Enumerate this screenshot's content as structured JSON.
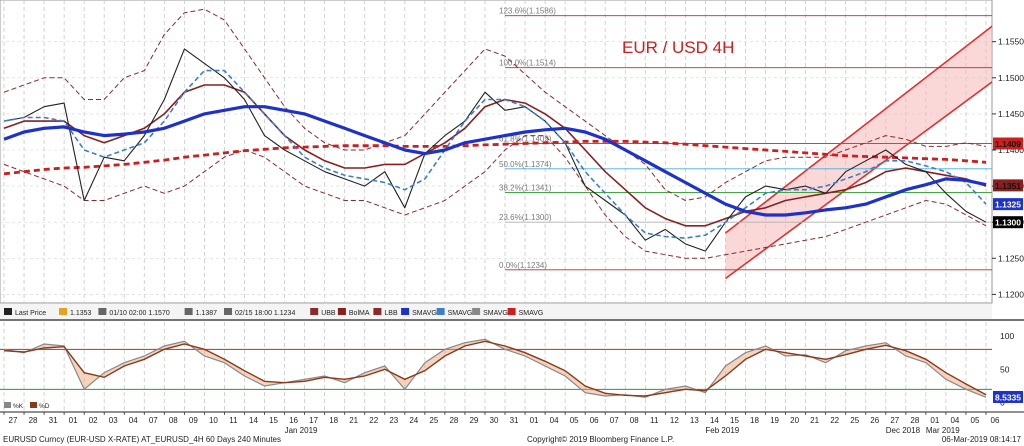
{
  "chart_data": [
    {
      "type": "line",
      "title": "EUR / USD 4H",
      "x": [
        "27",
        "28",
        "31",
        "01",
        "02",
        "03",
        "04",
        "07",
        "08",
        "09",
        "10",
        "11",
        "14",
        "15",
        "16",
        "17",
        "18",
        "21",
        "22",
        "23",
        "24",
        "25",
        "28",
        "29",
        "30",
        "31",
        "01",
        "04",
        "05",
        "06",
        "07",
        "08",
        "11",
        "12",
        "13",
        "14",
        "15",
        "18",
        "19",
        "20",
        "21",
        "22",
        "25",
        "26",
        "27",
        "28",
        "01",
        "04",
        "05",
        "06"
      ],
      "month_labels": [
        {
          "label": "Dec 2018",
          "at": "27"
        },
        {
          "label": "Jan 2019",
          "at": "16"
        },
        {
          "label": "Feb 2019",
          "at": "14"
        },
        {
          "label": "Mar 2019",
          "at": "01"
        }
      ],
      "ylim": [
        1.1195,
        1.1605
      ],
      "y_ticks": [
        "1.1550",
        "1.1500",
        "1.1450",
        "1.1400",
        "1.1350",
        "1.1300",
        "1.1250",
        "1.1200"
      ],
      "series": [
        {
          "name": "Last Price",
          "color": "#222222",
          "values": [
            1.144,
            1.1445,
            1.146,
            1.1465,
            1.133,
            1.139,
            1.1385,
            1.142,
            1.147,
            1.154,
            1.152,
            1.15,
            1.147,
            1.142,
            1.14,
            1.1385,
            1.137,
            1.136,
            1.135,
            1.137,
            1.132,
            1.1395,
            1.142,
            1.144,
            1.148,
            1.1455,
            1.146,
            1.144,
            1.141,
            1.135,
            1.133,
            1.131,
            1.1275,
            1.129,
            1.127,
            1.126,
            1.13,
            1.1335,
            1.135,
            1.1345,
            1.135,
            1.134,
            1.137,
            1.1385,
            1.14,
            1.138,
            1.137,
            1.134,
            1.1315,
            1.13
          ]
        },
        {
          "name": "UBB",
          "color": "#8a2a2a",
          "values": [
            1.148,
            1.149,
            1.15,
            1.15,
            1.147,
            1.147,
            1.15,
            1.151,
            1.156,
            1.159,
            1.1595,
            1.158,
            1.154,
            1.15,
            1.146,
            1.143,
            1.141,
            1.14,
            1.14,
            1.141,
            1.142,
            1.145,
            1.148,
            1.151,
            1.154,
            1.153,
            1.1505,
            1.148,
            1.146,
            1.144,
            1.142,
            1.14,
            1.138,
            1.1345,
            1.133,
            1.1335,
            1.1355,
            1.137,
            1.1385,
            1.139,
            1.139,
            1.139,
            1.14,
            1.141,
            1.142,
            1.1415,
            1.1405,
            1.1405,
            1.141,
            1.1405
          ]
        },
        {
          "name": "BolMA",
          "color": "#8a1f1f",
          "values": [
            1.143,
            1.144,
            1.144,
            1.144,
            1.142,
            1.141,
            1.142,
            1.143,
            1.145,
            1.148,
            1.149,
            1.149,
            1.148,
            1.145,
            1.142,
            1.14,
            1.1385,
            1.1375,
            1.1375,
            1.138,
            1.138,
            1.1395,
            1.141,
            1.143,
            1.146,
            1.147,
            1.1465,
            1.145,
            1.143,
            1.14,
            1.137,
            1.1345,
            1.132,
            1.1305,
            1.1295,
            1.1295,
            1.1305,
            1.1315,
            1.132,
            1.133,
            1.1335,
            1.134,
            1.1345,
            1.1355,
            1.137,
            1.1375,
            1.137,
            1.1365,
            1.136,
            1.135
          ]
        },
        {
          "name": "LBB",
          "color": "#8a2a2a",
          "values": [
            1.138,
            1.137,
            1.136,
            1.135,
            1.133,
            1.133,
            1.134,
            1.135,
            1.134,
            1.135,
            1.137,
            1.139,
            1.14,
            1.139,
            1.137,
            1.135,
            1.134,
            1.133,
            1.133,
            1.132,
            1.131,
            1.132,
            1.133,
            1.135,
            1.137,
            1.14,
            1.142,
            1.142,
            1.139,
            1.135,
            1.131,
            1.128,
            1.126,
            1.1255,
            1.125,
            1.125,
            1.1255,
            1.126,
            1.1265,
            1.127,
            1.1275,
            1.128,
            1.129,
            1.13,
            1.131,
            1.132,
            1.133,
            1.1325,
            1.131,
            1.1295
          ]
        },
        {
          "name": "SMAVG",
          "color": "#1e32c8",
          "values": [
            1.1415,
            1.1425,
            1.143,
            1.1432,
            1.1425,
            1.142,
            1.1422,
            1.1425,
            1.143,
            1.144,
            1.145,
            1.1455,
            1.146,
            1.146,
            1.1455,
            1.145,
            1.144,
            1.143,
            1.142,
            1.141,
            1.14,
            1.1395,
            1.14,
            1.141,
            1.1415,
            1.142,
            1.1425,
            1.1428,
            1.143,
            1.1425,
            1.1415,
            1.14,
            1.1385,
            1.137,
            1.1355,
            1.134,
            1.1325,
            1.1315,
            1.131,
            1.131,
            1.1313,
            1.1317,
            1.132,
            1.1325,
            1.1335,
            1.1345,
            1.1352,
            1.136,
            1.1358,
            1.1352
          ]
        },
        {
          "name": "SMAVG",
          "color": "#3a7fc8",
          "values": [
            1.144,
            1.1445,
            1.1445,
            1.144,
            1.14,
            1.139,
            1.14,
            1.141,
            1.144,
            1.148,
            1.151,
            1.151,
            1.148,
            1.145,
            1.142,
            1.139,
            1.1375,
            1.1365,
            1.136,
            1.1355,
            1.1345,
            1.136,
            1.14,
            1.144,
            1.147,
            1.147,
            1.146,
            1.144,
            1.141,
            1.137,
            1.134,
            1.131,
            1.1285,
            1.128,
            1.1278,
            1.1282,
            1.13,
            1.132,
            1.134,
            1.1345,
            1.1345,
            1.135,
            1.136,
            1.137,
            1.1385,
            1.1385,
            1.1378,
            1.137,
            1.1355,
            1.1325
          ]
        },
        {
          "name": "SMAVG",
          "color": "#cc1f1f",
          "values": [
            1.1367,
            1.137,
            1.1373,
            1.1375,
            1.1376,
            1.1378,
            1.138,
            1.1383,
            1.1386,
            1.139,
            1.1393,
            1.1396,
            1.1399,
            1.1401,
            1.1403,
            1.1404,
            1.1405,
            1.1406,
            1.1406,
            1.1406,
            1.1405,
            1.1405,
            1.1405,
            1.1406,
            1.1407,
            1.1408,
            1.1409,
            1.141,
            1.1411,
            1.1412,
            1.1412,
            1.1412,
            1.1411,
            1.141,
            1.1408,
            1.1406,
            1.1404,
            1.1402,
            1.14,
            1.1398,
            1.1396,
            1.1394,
            1.1392,
            1.1391,
            1.139,
            1.1389,
            1.1388,
            1.1387,
            1.1385,
            1.1383
          ]
        }
      ],
      "fib_levels": [
        {
          "label": "123.6%(1.1586)",
          "value": 1.1586
        },
        {
          "label": "100.0%(1.1514)",
          "value": 1.1514
        },
        {
          "label": "61.8%(1.1409)",
          "value": 1.1409
        },
        {
          "label": "50.0%(1.1374)",
          "value": 1.1374
        },
        {
          "label": "38.2%(1.1341)",
          "value": 1.1341
        },
        {
          "label": "23.6%(1.1300)",
          "value": 1.13
        },
        {
          "label": "0.0%(1.1234)",
          "value": 1.1234
        }
      ],
      "channel": {
        "lower_start": [
          "15",
          1.1222
        ],
        "lower_end": [
          "06",
          1.1488
        ],
        "upper_start": [
          "15",
          1.1285
        ],
        "upper_end": [
          "06",
          1.1565
        ],
        "color": "#e23030"
      },
      "price_tags": [
        {
          "label": "1.1409",
          "value": 1.1409,
          "color": "#cc1f1f",
          "text_color": "#111111"
        },
        {
          "label": "1.1351",
          "value": 1.1351,
          "color": "#8a1f1f",
          "text_color": "#111111"
        },
        {
          "label": "1.1325",
          "value": 1.1325,
          "color": "#1e32c8",
          "text_color": "#ffffff"
        },
        {
          "label": "1.1300",
          "value": 1.13,
          "color": "#000000",
          "text_color": "#ffffff"
        }
      ],
      "legend": [
        {
          "label": "Last Price",
          "color": "#222222"
        },
        {
          "label": "1.1353",
          "color": "#e6a21f"
        },
        {
          "label": "01/10 02:00 1.1570",
          "color": "#666666"
        },
        {
          "label": "1.1387",
          "color": "#666666"
        },
        {
          "label": "02/15 18:00 1.1234",
          "color": "#666666"
        },
        {
          "label": "UBB",
          "color": "#8a2a2a"
        },
        {
          "label": "BolMA",
          "color": "#8a1f1f"
        },
        {
          "label": "LBB",
          "color": "#8a2a2a"
        },
        {
          "label": "SMAVG",
          "color": "#1e32c8"
        },
        {
          "label": "SMAVG",
          "color": "#3a7fc8"
        },
        {
          "label": "SMAVG",
          "color": "#888888"
        },
        {
          "label": "SMAVG",
          "color": "#cc1f1f"
        }
      ]
    },
    {
      "type": "line",
      "title": "",
      "ylim": [
        -8,
        115
      ],
      "y_ticks": [
        "100",
        "50",
        "0"
      ],
      "reference_lines": [
        80,
        20
      ],
      "series": [
        {
          "name": "%K",
          "color": "#888888",
          "values": [
            80,
            75,
            88,
            85,
            20,
            45,
            60,
            70,
            85,
            92,
            70,
            60,
            40,
            25,
            30,
            35,
            40,
            30,
            45,
            55,
            20,
            60,
            80,
            90,
            95,
            80,
            70,
            55,
            40,
            15,
            10,
            12,
            8,
            20,
            25,
            15,
            55,
            75,
            85,
            70,
            72,
            60,
            78,
            85,
            90,
            70,
            60,
            35,
            20,
            8
          ]
        },
        {
          "name": "%D",
          "color": "#8a3a1a",
          "values": [
            78,
            76,
            82,
            84,
            45,
            38,
            55,
            65,
            80,
            88,
            80,
            65,
            48,
            32,
            30,
            32,
            38,
            35,
            40,
            50,
            35,
            48,
            70,
            85,
            92,
            85,
            75,
            62,
            48,
            25,
            14,
            11,
            10,
            15,
            20,
            18,
            40,
            65,
            80,
            75,
            70,
            65,
            72,
            80,
            86,
            78,
            65,
            45,
            28,
            12
          ]
        }
      ],
      "price_tag": {
        "label": "8.5335",
        "value": 8.5335
      },
      "legend": [
        {
          "label": "%K",
          "color": "#888888"
        },
        {
          "label": "%D",
          "color": "#8a3a1a"
        }
      ]
    }
  ],
  "footer": {
    "left": "EURUSD Curncy (EUR-USD X-RATE) AT_EURUSD_4H 60 Days 240 Minutes",
    "center": "Copyright© 2019 Bloomberg Finance L.P.",
    "right": "06-Mar-2019 08:14:17"
  }
}
